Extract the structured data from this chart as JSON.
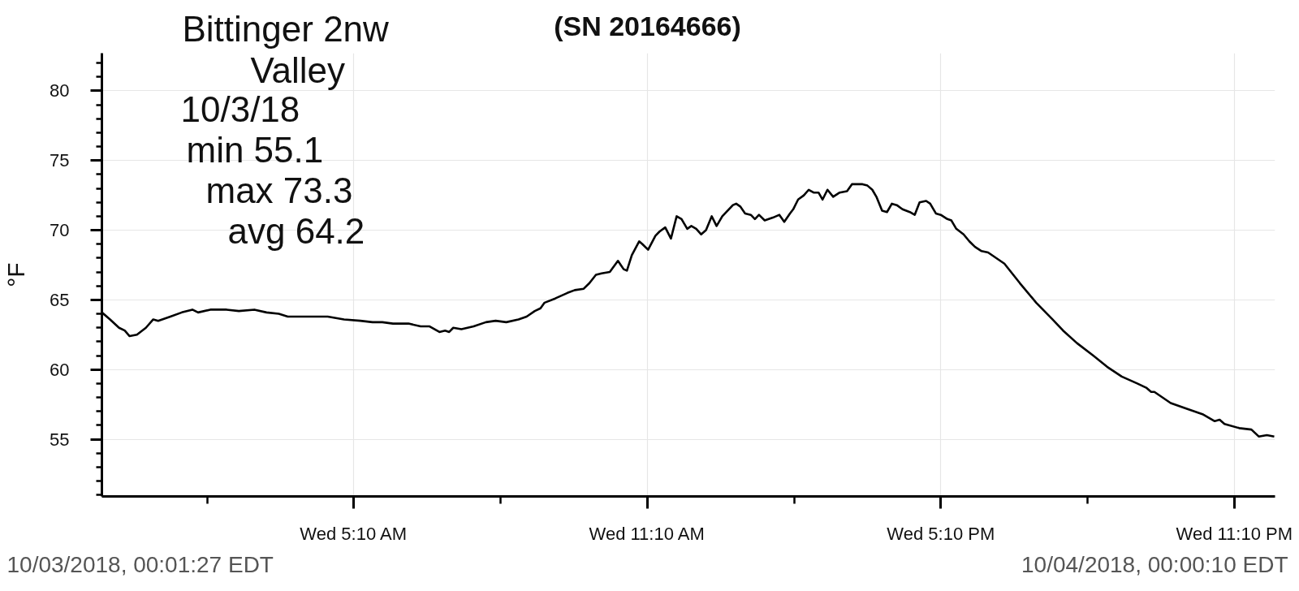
{
  "chart_data": {
    "type": "line",
    "title": "(SN 20164666)",
    "ylabel": "°F",
    "annotations": [
      "Bittinger 2nw",
      "Valley",
      "10/3/18",
      "min 55.1",
      "max 73.3",
      "avg 64.2",
      "10/03/2018, 00:01:27 EDT",
      "10/04/2018, 00:00:10 EDT"
    ],
    "x": [
      "2018-10-03T00:01",
      "2018-10-03T00:11",
      "2018-10-03T00:22",
      "2018-10-03T00:29",
      "2018-10-03T00:35",
      "2018-10-03T00:44",
      "2018-10-03T00:55",
      "2018-10-03T01:04",
      "2018-10-03T01:10",
      "2018-10-03T01:25",
      "2018-10-03T01:39",
      "2018-10-03T01:52",
      "2018-10-03T01:59",
      "2018-10-03T02:14",
      "2018-10-03T02:34",
      "2018-10-03T02:49",
      "2018-10-03T03:08",
      "2018-10-03T03:23",
      "2018-10-03T03:38",
      "2018-10-03T03:49",
      "2018-10-03T04:04",
      "2018-10-03T04:23",
      "2018-10-03T04:38",
      "2018-10-03T04:58",
      "2018-10-03T05:18",
      "2018-10-03T05:33",
      "2018-10-03T05:45",
      "2018-10-03T05:58",
      "2018-10-03T06:17",
      "2018-10-03T06:32",
      "2018-10-03T06:43",
      "2018-10-03T06:55",
      "2018-10-03T07:02",
      "2018-10-03T07:07",
      "2018-10-03T07:12",
      "2018-10-03T07:22",
      "2018-10-03T07:37",
      "2018-10-03T07:52",
      "2018-10-03T08:04",
      "2018-10-03T08:17",
      "2018-10-03T08:32",
      "2018-10-03T08:42",
      "2018-10-03T08:52",
      "2018-10-03T08:59",
      "2018-10-03T09:04",
      "2018-10-03T09:17",
      "2018-10-03T09:32",
      "2018-10-03T09:41",
      "2018-10-03T09:52",
      "2018-10-03T09:59",
      "2018-10-03T10:07",
      "2018-10-03T10:14",
      "2018-10-03T10:24",
      "2018-10-03T10:34",
      "2018-10-03T10:41",
      "2018-10-03T10:45",
      "2018-10-03T10:51",
      "2018-10-03T11:00",
      "2018-10-03T11:04",
      "2018-10-03T11:11",
      "2018-10-03T11:20",
      "2018-10-03T11:25",
      "2018-10-03T11:32",
      "2018-10-03T11:39",
      "2018-10-03T11:46",
      "2018-10-03T11:52",
      "2018-10-03T11:59",
      "2018-10-03T12:04",
      "2018-10-03T12:10",
      "2018-10-03T12:16",
      "2018-10-03T12:22",
      "2018-10-03T12:29",
      "2018-10-03T12:35",
      "2018-10-03T12:42",
      "2018-10-03T12:55",
      "2018-10-03T12:59",
      "2018-10-03T13:04",
      "2018-10-03T13:10",
      "2018-10-03T13:17",
      "2018-10-03T13:22",
      "2018-10-03T13:27",
      "2018-10-03T13:34",
      "2018-10-03T13:44",
      "2018-10-03T13:52",
      "2018-10-03T13:58",
      "2018-10-03T14:05",
      "2018-10-03T14:09",
      "2018-10-03T14:15",
      "2018-10-03T14:22",
      "2018-10-03T14:28",
      "2018-10-03T14:34",
      "2018-10-03T14:40",
      "2018-10-03T14:45",
      "2018-10-03T14:51",
      "2018-10-03T14:58",
      "2018-10-03T15:06",
      "2018-10-03T15:15",
      "2018-10-03T15:21",
      "2018-10-03T15:28",
      "2018-10-03T15:34",
      "2018-10-03T15:40",
      "2018-10-03T15:46",
      "2018-10-03T15:51",
      "2018-10-03T15:58",
      "2018-10-03T16:04",
      "2018-10-03T16:10",
      "2018-10-03T16:16",
      "2018-10-03T16:23",
      "2018-10-03T16:32",
      "2018-10-03T16:38",
      "2018-10-03T16:44",
      "2018-10-03T16:52",
      "2018-10-03T16:57",
      "2018-10-03T17:04",
      "2018-10-03T17:10",
      "2018-10-03T17:18",
      "2018-10-03T17:23",
      "2018-10-03T17:29",
      "2018-10-03T17:38",
      "2018-10-03T17:45",
      "2018-10-03T17:52",
      "2018-10-03T18:00",
      "2018-10-03T18:08",
      "2018-10-03T18:28",
      "2018-10-03T18:47",
      "2018-10-03T19:07",
      "2018-10-03T19:27",
      "2018-10-03T19:40",
      "2018-10-03T19:57",
      "2018-10-03T20:17",
      "2018-10-03T20:34",
      "2018-10-03T20:52",
      "2018-10-03T21:11",
      "2018-10-03T21:22",
      "2018-10-03T21:28",
      "2018-10-03T21:32",
      "2018-10-03T21:52",
      "2018-10-03T22:11",
      "2018-10-03T22:31",
      "2018-10-03T22:46",
      "2018-10-03T22:52",
      "2018-10-03T22:58",
      "2018-10-03T23:16",
      "2018-10-03T23:31",
      "2018-10-03T23:40",
      "2018-10-03T23:50",
      "2018-10-03T23:59"
    ],
    "series": [
      {
        "color": "#000000",
        "values": [
          64.1,
          63.6,
          63.0,
          62.8,
          62.4,
          62.5,
          63.0,
          63.6,
          63.5,
          63.8,
          64.1,
          64.3,
          64.1,
          64.3,
          64.3,
          64.2,
          64.3,
          64.1,
          64.0,
          63.8,
          63.8,
          63.8,
          63.8,
          63.6,
          63.5,
          63.4,
          63.4,
          63.3,
          63.3,
          63.1,
          63.1,
          62.7,
          62.8,
          62.7,
          63.0,
          62.9,
          63.1,
          63.4,
          63.5,
          63.4,
          63.6,
          63.8,
          64.2,
          64.4,
          64.8,
          65.1,
          65.5,
          65.7,
          65.8,
          66.2,
          66.8,
          66.9,
          67.0,
          67.8,
          67.2,
          67.1,
          68.2,
          69.2,
          69.0,
          68.6,
          69.6,
          69.9,
          70.2,
          69.4,
          71.0,
          70.8,
          70.1,
          70.3,
          70.1,
          69.7,
          70.0,
          71.0,
          70.3,
          71.0,
          71.8,
          71.9,
          71.7,
          71.2,
          71.1,
          70.8,
          71.1,
          70.7,
          70.9,
          71.1,
          70.6,
          71.2,
          71.5,
          72.2,
          72.5,
          72.9,
          72.7,
          72.7,
          72.2,
          72.9,
          72.4,
          72.7,
          72.8,
          73.3,
          73.3,
          73.3,
          73.2,
          72.9,
          72.4,
          71.4,
          71.3,
          71.9,
          71.8,
          71.5,
          71.3,
          71.1,
          72.0,
          72.1,
          71.9,
          71.2,
          71.1,
          70.8,
          70.7,
          70.1,
          69.7,
          69.2,
          68.8,
          68.5,
          68.4,
          67.6,
          66.2,
          64.8,
          63.6,
          62.8,
          61.9,
          61.0,
          60.2,
          59.5,
          59.0,
          58.7,
          58.4,
          58.4,
          57.6,
          57.2,
          56.8,
          56.3,
          56.4,
          56.1,
          55.8,
          55.7,
          55.2,
          55.3,
          55.2
        ]
      }
    ],
    "xlim": [
      "2018-10-03T00:01",
      "2018-10-04T00:00"
    ],
    "xticks": [
      {
        "value": "2018-10-03T02:10",
        "label": null
      },
      {
        "value": "2018-10-03T05:10",
        "label": "Wed 5:10 AM"
      },
      {
        "value": "2018-10-03T08:10",
        "label": null
      },
      {
        "value": "2018-10-03T11:10",
        "label": "Wed 11:10 AM"
      },
      {
        "value": "2018-10-03T14:10",
        "label": null
      },
      {
        "value": "2018-10-03T17:10",
        "label": "Wed 5:10 PM"
      },
      {
        "value": "2018-10-03T20:10",
        "label": null
      },
      {
        "value": "2018-10-03T23:10",
        "label": "Wed 11:10 PM"
      }
    ],
    "ylim": [
      50.9,
      82.7
    ],
    "yticks": [
      {
        "value": 51,
        "label": null
      },
      {
        "value": 52,
        "label": null
      },
      {
        "value": 53,
        "label": null
      },
      {
        "value": 54,
        "label": null
      },
      55,
      {
        "value": 56,
        "label": null
      },
      {
        "value": 57,
        "label": null
      },
      {
        "value": 58,
        "label": null
      },
      {
        "value": 59,
        "label": null
      },
      60,
      {
        "value": 61,
        "label": null
      },
      {
        "value": 62,
        "label": null
      },
      {
        "value": 63,
        "label": null
      },
      {
        "value": 64,
        "label": null
      },
      65,
      {
        "value": 66,
        "label": null
      },
      {
        "value": 67,
        "label": null
      },
      {
        "value": 68,
        "label": null
      },
      {
        "value": 69,
        "label": null
      },
      70,
      {
        "value": 71,
        "label": null
      },
      {
        "value": 72,
        "label": null
      },
      {
        "value": 73,
        "label": null
      },
      {
        "value": 74,
        "label": null
      },
      75,
      {
        "value": 76,
        "label": null
      },
      {
        "value": 77,
        "label": null
      },
      {
        "value": 78,
        "label": null
      },
      {
        "value": 79,
        "label": null
      },
      80,
      {
        "value": 81,
        "label": null
      },
      {
        "value": 82,
        "label": null
      }
    ],
    "grid": true,
    "line_style": "solid"
  }
}
